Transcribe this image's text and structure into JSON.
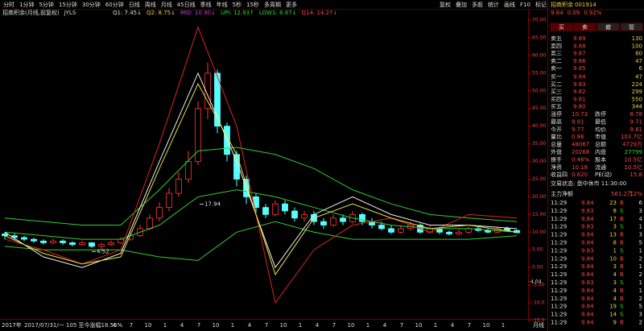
{
  "toolbar": {
    "periods": [
      "分时",
      "1分钟",
      "5分钟",
      "15分钟",
      "30分钟",
      "60分钟",
      "日线",
      "周线",
      "月线",
      "45日线",
      "季线",
      "年线",
      "5秒",
      "15秒",
      "多周期",
      "更多"
    ],
    "tools": [
      "复权",
      "叠加",
      "多股",
      "统计",
      "画线",
      "F10",
      "标记"
    ]
  },
  "indicator": {
    "title": "招商积余(月线,前复权)",
    "name": "JYLS",
    "items": [
      "Q1: 7.45↓",
      "Q2: 8.75↓",
      "MID: 10.90↓",
      "UPI: 12.93↑",
      "LOW1: 8.87↓",
      "Q14: 14.27↓"
    ]
  },
  "chart_data": {
    "type": "candlestick",
    "ylim": [
      -15,
      70
    ],
    "yticks": [
      {
        "value": 70,
        "label": "70.00"
      },
      {
        "value": 65,
        "label": "65.00"
      },
      {
        "value": 60,
        "label": "60.00"
      },
      {
        "value": 55,
        "label": "55.00"
      },
      {
        "value": 50,
        "label": "50.00"
      },
      {
        "value": 45,
        "label": "45.00"
      },
      {
        "value": 40,
        "label": "40.00"
      },
      {
        "value": 35,
        "label": "35.00"
      },
      {
        "value": 30,
        "label": "30.00"
      },
      {
        "value": 25,
        "label": "25.00"
      },
      {
        "value": 20,
        "label": "20.00"
      },
      {
        "value": 15,
        "label": "15.00"
      },
      {
        "value": 10,
        "label": "10.00"
      },
      {
        "value": 5,
        "label": "5.00"
      },
      {
        "value": 0,
        "label": "0.00"
      },
      {
        "value": -5,
        "label": "-5.00"
      },
      {
        "value": -10,
        "label": "-10.0"
      },
      {
        "value": -15,
        "label": "-15.0"
      }
    ],
    "candles": [
      [
        9.5,
        9,
        10,
        8
      ],
      [
        9,
        8.5,
        9.6,
        7.8
      ],
      [
        8.5,
        8,
        9,
        7.4
      ],
      [
        8,
        7.5,
        8.4,
        7
      ],
      [
        7.5,
        7,
        8,
        6.5
      ],
      [
        7,
        7.5,
        8.2,
        6.6
      ],
      [
        7.5,
        7,
        8,
        6.4
      ],
      [
        7,
        6.5,
        7.4,
        6
      ],
      [
        6.5,
        7,
        7.6,
        6.1
      ],
      [
        7,
        6,
        7.2,
        5.5
      ],
      [
        6,
        6.5,
        7,
        4.52
      ],
      [
        6.5,
        7,
        7.6,
        6
      ],
      [
        7,
        8,
        8.6,
        6.8
      ],
      [
        8,
        9,
        9.8,
        7.6
      ],
      [
        9,
        11,
        12,
        8.6
      ],
      [
        11,
        14,
        15,
        10.5
      ],
      [
        14,
        17,
        18.5,
        13
      ],
      [
        17,
        21,
        22.5,
        16
      ],
      [
        21,
        25,
        27,
        20
      ],
      [
        25,
        30,
        33,
        24
      ],
      [
        30,
        45,
        47,
        29
      ],
      [
        45,
        55,
        58,
        42
      ],
      [
        55,
        40,
        56,
        38
      ],
      [
        40,
        32,
        41,
        30
      ],
      [
        32,
        25,
        33,
        23
      ],
      [
        25,
        20,
        26,
        18
      ],
      [
        20,
        17,
        21,
        15.5
      ],
      [
        17,
        15,
        18,
        14
      ],
      [
        15,
        18,
        19,
        14.5
      ],
      [
        18,
        16,
        19,
        15
      ],
      [
        16,
        14,
        17,
        13
      ],
      [
        14,
        15,
        16,
        13
      ],
      [
        15,
        13,
        16,
        12
      ],
      [
        13,
        12,
        14,
        11
      ],
      [
        12,
        14,
        15,
        11.5
      ],
      [
        14,
        13,
        15,
        12
      ],
      [
        13,
        15,
        16,
        12.5
      ],
      [
        15,
        13,
        15.5,
        12
      ],
      [
        13,
        12,
        14,
        11
      ],
      [
        12,
        11,
        13,
        10.5
      ],
      [
        11,
        10,
        12,
        9.5
      ],
      [
        10,
        11,
        12,
        9.6
      ],
      [
        11,
        12,
        13,
        10.5
      ],
      [
        12,
        10,
        12.5,
        9.5
      ],
      [
        10,
        11,
        11.8,
        9.6
      ],
      [
        11,
        10,
        11.5,
        9.4
      ],
      [
        10,
        9.5,
        10.5,
        9
      ],
      [
        9.5,
        10,
        10.8,
        9.2
      ],
      [
        10,
        11,
        11.6,
        9.6
      ],
      [
        11,
        10.5,
        11.5,
        10
      ],
      [
        10.5,
        10,
        11,
        9.6
      ],
      [
        10,
        11,
        11.5,
        9.7
      ],
      [
        11,
        10.5,
        11.6,
        10
      ],
      [
        10.5,
        9.84,
        10.8,
        9.7
      ]
    ],
    "x": [
      0,
      4,
      8,
      12,
      16,
      20,
      24,
      28,
      32,
      36,
      40,
      44,
      48,
      53
    ],
    "series": [
      {
        "color": "#33cc33",
        "values": [
          14,
          13,
          12,
          12,
          22,
          33,
          34,
          32,
          28,
          22,
          18,
          15,
          14,
          13
        ]
      },
      {
        "color": "#33cc33",
        "values": [
          10,
          9,
          8,
          8,
          12,
          20,
          22,
          20,
          17,
          14,
          12,
          11,
          11,
          10
        ]
      },
      {
        "color": "#33cc33",
        "values": [
          6,
          5,
          5,
          5,
          3,
          2,
          10,
          13,
          10,
          8,
          8,
          8,
          8,
          9
        ]
      },
      {
        "color": "#dd2222",
        "values": [
          8,
          5,
          1,
          5,
          35,
          68,
          40,
          -10,
          5,
          12,
          14,
          10,
          15,
          14
        ]
      },
      {
        "color": "#f0f0f0",
        "values": [
          10,
          3,
          0,
          4,
          30,
          55,
          30,
          0,
          15,
          20,
          15,
          12,
          12,
          11
        ]
      },
      {
        "color": "#e8e040",
        "values": [
          9,
          4,
          1,
          3,
          28,
          52,
          32,
          -2,
          14,
          18,
          14,
          11,
          12,
          10
        ]
      }
    ],
    "annotations": [
      {
        "value": 17.94,
        "label": "17.94"
      },
      {
        "value": 4.52,
        "label": "4.52"
      },
      {
        "value": -4.04,
        "label": "-4.04"
      }
    ],
    "xlabels": [
      "4",
      "7",
      "10",
      "1",
      "4",
      "7",
      "10",
      "1",
      "4",
      "7",
      "10",
      "1",
      "4",
      "7",
      "10",
      "1",
      "4",
      "7",
      "10",
      "1",
      "4",
      "7",
      "10",
      "1"
    ],
    "xstart": "2017年",
    "cursor": "2017/07/31/一 105 至今涨幅18.55%",
    "period": "月线"
  },
  "quote": {
    "name": "招商积余",
    "code": "001914",
    "price": "9.84",
    "change": "0.09",
    "pct": "0.92%",
    "buttons": [
      "买",
      "卖",
      "撤",
      "管"
    ]
  },
  "order_book": [
    [
      "卖五",
      "9.89",
      "130"
    ],
    [
      "卖四",
      "9.88",
      "100"
    ],
    [
      "卖三",
      "9.87",
      "80"
    ],
    [
      "卖二",
      "9.86",
      "47"
    ],
    [
      "卖一",
      "9.85",
      "6"
    ],
    [
      "买一",
      "9.84",
      "47"
    ],
    [
      "买二",
      "9.83",
      "224"
    ],
    [
      "买三",
      "9.82",
      "299"
    ],
    [
      "买四",
      "9.81",
      "550"
    ],
    [
      "买五",
      "9.80",
      "344"
    ]
  ],
  "stats": [
    [
      "涨停",
      "10.73",
      "跌停",
      "8.78"
    ],
    [
      "最高",
      "9.91",
      "最低",
      "9.71"
    ],
    [
      "今开",
      "9.77",
      "均价",
      "9.81"
    ],
    [
      "量比",
      "0.86",
      "市值",
      "103.7亿"
    ],
    [
      "总量",
      "48067",
      "总额",
      "4729万"
    ],
    [
      "外盘",
      "20268",
      "内盘",
      "27799"
    ],
    [
      "换手",
      "0.46%",
      "股本",
      "10.5亿"
    ],
    [
      "净资",
      "10.18",
      "流通",
      "10.5亿"
    ],
    [
      "收益四",
      "0.620",
      "PE(动)",
      "15.8"
    ]
  ],
  "status": "交易状态: 盘中休市 11:30:00",
  "flow": [
    "主力净额",
    "561.2万",
    "12%"
  ],
  "ticks": [
    [
      "11:29",
      "9.84",
      "23",
      "B",
      "6"
    ],
    [
      "11:29",
      "9.83",
      "8",
      "S",
      "3"
    ],
    [
      "11:29",
      "9.84",
      "17",
      "B",
      "4"
    ],
    [
      "11:29",
      "9.83",
      "3",
      "S",
      "1"
    ],
    [
      "11:29",
      "9.84",
      "13",
      "B",
      "3"
    ],
    [
      "11:29",
      "9.84",
      "8",
      "B",
      "5"
    ],
    [
      "11:29",
      "9.83",
      "1",
      "S",
      "1"
    ],
    [
      "11:29",
      "9.84",
      "10",
      "B",
      "2"
    ],
    [
      "11:29",
      "9.84",
      "3",
      "B",
      "1"
    ],
    [
      "11:29",
      "9.84",
      "4",
      "B",
      "2"
    ],
    [
      "11:29",
      "9.83",
      "3",
      "S",
      "1"
    ],
    [
      "11:29",
      "9.84",
      "4",
      "B",
      "1"
    ],
    [
      "11:29",
      "9.84",
      "4",
      "B",
      "2"
    ],
    [
      "11:29",
      "9.84",
      "19",
      "S",
      "5"
    ],
    [
      "11:29",
      "9.84",
      "14",
      "S",
      "3"
    ],
    [
      "11:29",
      "9.84",
      "9",
      "B",
      "2"
    ]
  ]
}
